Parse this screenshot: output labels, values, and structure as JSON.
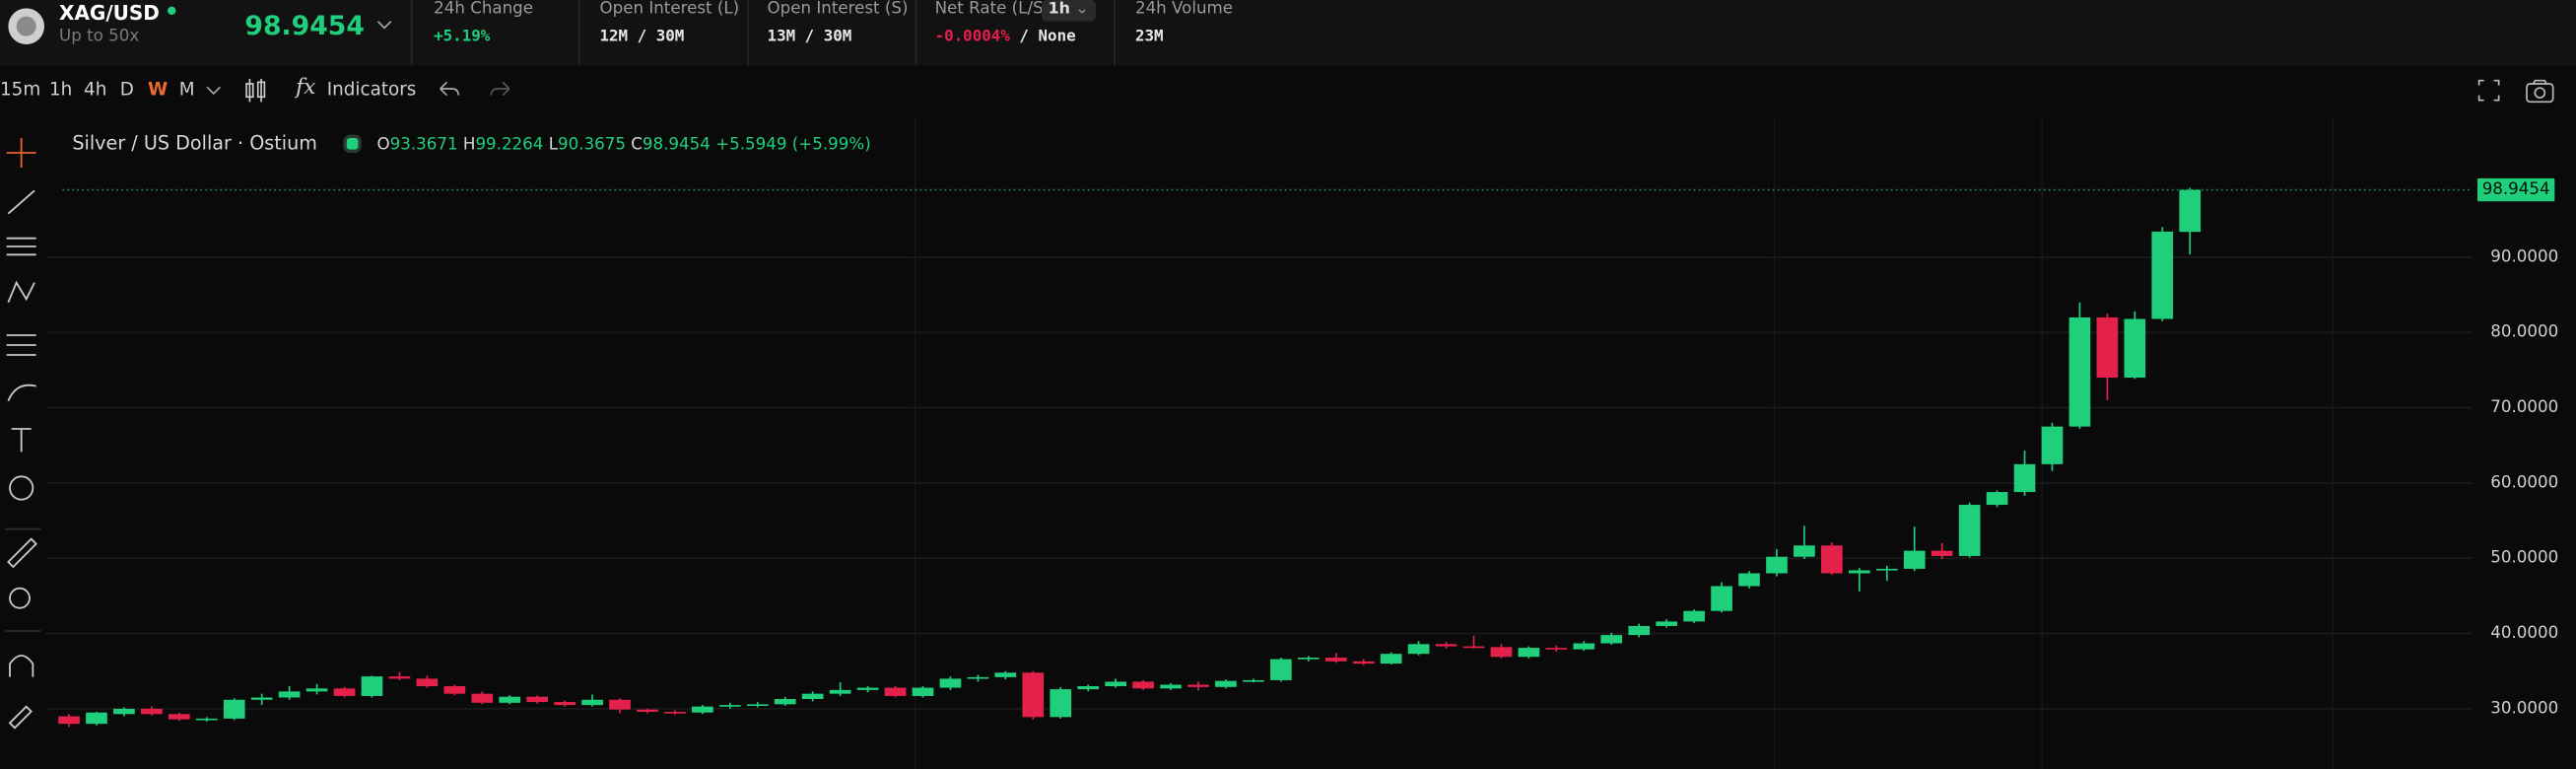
{
  "header": {
    "symbol": "XAG/USD",
    "leverage": "Up to 50x",
    "price": "98.9454",
    "stats": [
      {
        "label": "24h Change",
        "value": "+5.19%"
      },
      {
        "label": "Open Interest (L)",
        "value": "12M / 30M"
      },
      {
        "label": "Open Interest (S)",
        "value": "13M / 30M"
      },
      {
        "label": "Net Rate (L/S)",
        "interval": "1h",
        "value": "-0.0004%",
        "value2": "/ None"
      },
      {
        "label": "24h Volume",
        "value": "23M"
      }
    ]
  },
  "toolbar": {
    "intervals": [
      "15m",
      "1h",
      "4h",
      "D",
      "W",
      "M"
    ],
    "active": 4,
    "indicators_icon": "fx",
    "indicators": "Indicators"
  },
  "legend": {
    "name": "Silver / US Dollar · Ostium",
    "o": "O",
    "h": "H",
    "l": "L",
    "c": "C",
    "change": "+5.5949 (+5.99%)"
  },
  "chart_data": {
    "type": "candlestick",
    "up_color": "#1fcf7c",
    "down_color": "#e3214a",
    "open": [
      29.0,
      28.0,
      29.3,
      30.0,
      29.3,
      28.6,
      28.7,
      31.2,
      31.5,
      32.3,
      32.7,
      31.7,
      34.3,
      34.0,
      33.0,
      32.0,
      30.8,
      31.6,
      30.9,
      30.5,
      31.2,
      29.9,
      29.6,
      29.5,
      30.3,
      30.5,
      30.6,
      31.3,
      32.0,
      32.5,
      32.8,
      31.7,
      32.8,
      34.0,
      34.2,
      34.8,
      28.9,
      32.6,
      33.0,
      33.6,
      32.7,
      33.2,
      32.9,
      33.7,
      33.8,
      36.6,
      36.8,
      36.3,
      36.0,
      37.3,
      38.6,
      38.3,
      38.2,
      36.9,
      38.1,
      37.9,
      38.7,
      39.8,
      41.0,
      41.6,
      43.0,
      46.3,
      48.0,
      50.2,
      51.7,
      48.0,
      48.4,
      48.6,
      51.0,
      50.3,
      57.1,
      58.8,
      62.5,
      67.5,
      82.0,
      74.0,
      81.8,
      93.3671
    ],
    "high": [
      29.3,
      29.6,
      30.2,
      30.3,
      29.5,
      28.9,
      31.4,
      32.0,
      33.0,
      33.3,
      32.9,
      34.4,
      34.9,
      34.4,
      33.2,
      32.3,
      31.8,
      31.8,
      31.1,
      31.9,
      31.4,
      30.0,
      29.8,
      30.5,
      30.8,
      30.9,
      31.6,
      32.3,
      33.5,
      33.0,
      33.0,
      33.0,
      34.3,
      34.5,
      35.0,
      35.0,
      32.9,
      33.2,
      34.0,
      33.8,
      33.4,
      33.6,
      33.9,
      34.0,
      36.8,
      37.0,
      37.4,
      36.6,
      37.5,
      39.0,
      38.9,
      39.7,
      38.6,
      38.3,
      38.4,
      39.0,
      40.1,
      41.3,
      41.9,
      43.2,
      46.8,
      48.3,
      51.2,
      54.3,
      52.1,
      48.7,
      49.0,
      54.2,
      52.0,
      57.4,
      59.0,
      64.3,
      68.0,
      84.0,
      82.5,
      82.8,
      94.0,
      99.2264
    ],
    "low": [
      27.6,
      27.8,
      29.0,
      29.1,
      28.4,
      28.3,
      28.5,
      30.5,
      31.2,
      31.9,
      31.5,
      31.5,
      33.8,
      32.8,
      31.8,
      30.6,
      30.6,
      30.7,
      30.3,
      30.3,
      29.4,
      29.4,
      29.2,
      29.3,
      30.0,
      30.2,
      30.4,
      31.0,
      31.7,
      32.2,
      31.5,
      31.5,
      32.5,
      33.6,
      33.9,
      28.6,
      28.7,
      32.3,
      32.8,
      32.5,
      32.5,
      32.4,
      32.7,
      33.5,
      33.6,
      36.3,
      36.1,
      35.8,
      35.9,
      37.1,
      38.0,
      38.0,
      36.7,
      36.7,
      37.6,
      37.7,
      38.5,
      39.5,
      40.8,
      41.4,
      42.8,
      46.0,
      47.6,
      49.9,
      47.8,
      45.6,
      47.0,
      48.3,
      49.9,
      50.1,
      56.8,
      58.3,
      61.6,
      67.2,
      71.0,
      73.8,
      81.5,
      90.3675
    ],
    "close": [
      28.0,
      29.5,
      30.0,
      29.3,
      28.6,
      28.7,
      31.2,
      31.5,
      32.3,
      32.7,
      31.7,
      34.3,
      34.0,
      33.0,
      32.0,
      30.8,
      31.6,
      30.9,
      30.5,
      31.2,
      29.9,
      29.6,
      29.5,
      30.3,
      30.5,
      30.6,
      31.3,
      32.0,
      32.5,
      32.8,
      31.7,
      32.8,
      34.0,
      34.2,
      34.8,
      28.9,
      32.6,
      33.0,
      33.6,
      32.7,
      33.2,
      32.9,
      33.7,
      33.8,
      36.6,
      36.8,
      36.3,
      36.0,
      37.3,
      38.6,
      38.3,
      38.2,
      36.9,
      38.1,
      37.9,
      38.7,
      39.8,
      41.0,
      41.6,
      43.0,
      46.3,
      48.0,
      50.2,
      51.7,
      48.0,
      48.4,
      48.6,
      51.0,
      50.3,
      57.1,
      58.8,
      62.5,
      67.5,
      82.0,
      74.0,
      81.8,
      93.4,
      98.9454
    ],
    "price_line": 98.9454,
    "ylim": [
      22,
      107.8
    ],
    "yticks": [
      {
        "value": 30,
        "label": "30.0000"
      },
      {
        "value": 40,
        "label": "40.0000"
      },
      {
        "value": 50,
        "label": "50.0000"
      },
      {
        "value": 60,
        "label": "60.0000"
      },
      {
        "value": 70,
        "label": "70.0000"
      },
      {
        "value": 80,
        "label": "80.0000"
      },
      {
        "value": 90,
        "label": "90.0000"
      }
    ],
    "grid": true
  }
}
